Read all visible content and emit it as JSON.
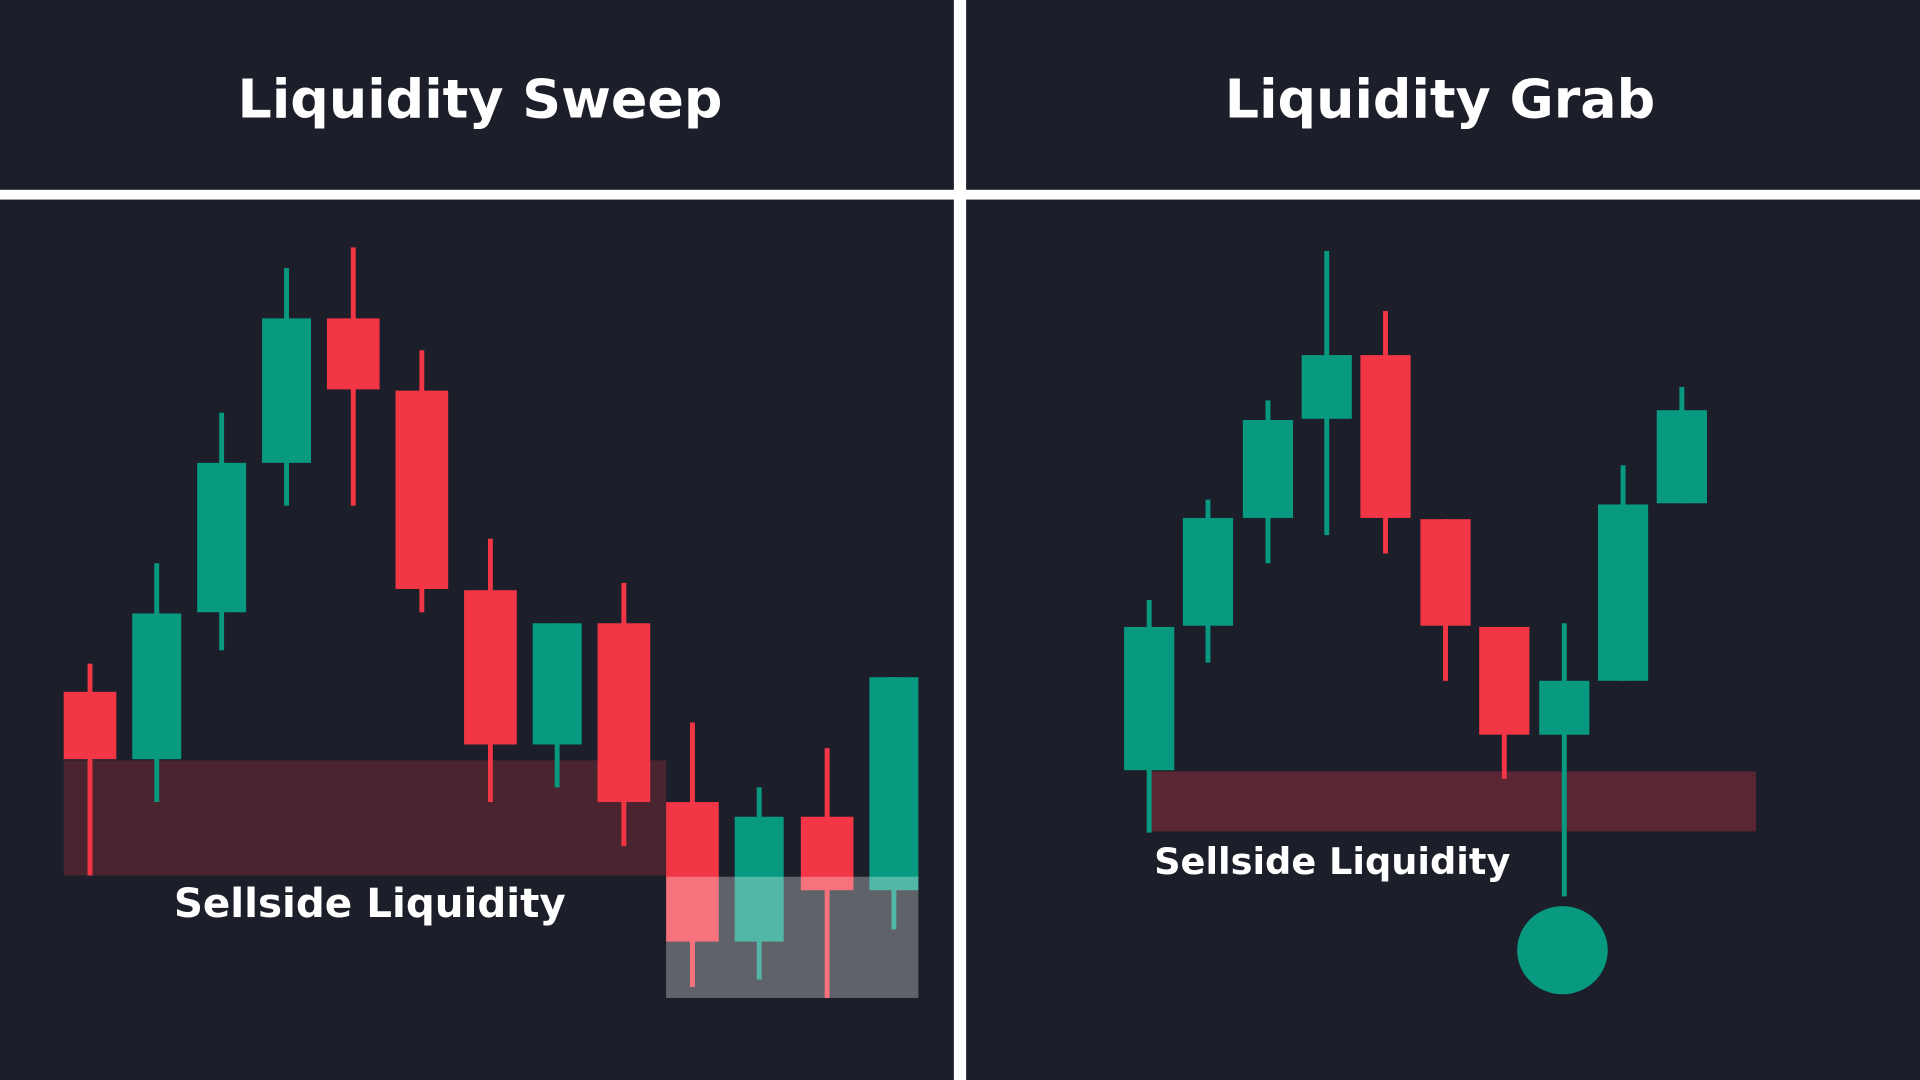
{
  "panels": [
    {
      "title": "Liquidity Sweep",
      "zone_label": "Sellside Liquidity"
    },
    {
      "title": "Liquidity Grab",
      "zone_label": "Sellside Liquidity"
    }
  ]
}
